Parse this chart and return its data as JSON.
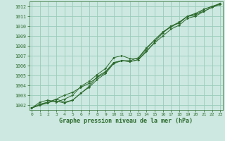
{
  "bg_color": "#cce8e0",
  "plot_bg_color": "#cce8e0",
  "grid_color": "#99ccbb",
  "line_color": "#2d6a2d",
  "marker_color": "#2d6a2d",
  "xlabel": "Graphe pression niveau de la mer (hPa)",
  "xlabel_color": "#2d6a2d",
  "tick_color": "#2d6a2d",
  "ylim": [
    1001.5,
    1012.5
  ],
  "xlim": [
    -0.3,
    23.3
  ],
  "yticks": [
    1002,
    1003,
    1004,
    1005,
    1006,
    1007,
    1008,
    1009,
    1010,
    1011,
    1012
  ],
  "xticks": [
    0,
    1,
    2,
    3,
    4,
    5,
    6,
    7,
    8,
    9,
    10,
    11,
    12,
    13,
    14,
    15,
    16,
    17,
    18,
    19,
    20,
    21,
    22,
    23
  ],
  "series": [
    [
      1001.7,
      1002.0,
      1002.2,
      1002.6,
      1002.3,
      1002.5,
      1003.2,
      1003.8,
      1004.6,
      1005.2,
      1006.2,
      1006.5,
      1006.4,
      1006.6,
      1007.4,
      1008.4,
      1009.3,
      1010.0,
      1010.3,
      1011.0,
      1011.1,
      1011.7,
      1012.0,
      1012.2
    ],
    [
      1001.7,
      1002.0,
      1002.3,
      1002.6,
      1003.0,
      1003.3,
      1003.8,
      1004.2,
      1004.8,
      1005.3,
      1006.3,
      1006.5,
      1006.5,
      1006.8,
      1007.8,
      1008.6,
      1009.4,
      1010.0,
      1010.4,
      1011.0,
      1011.3,
      1011.7,
      1012.0,
      1012.3
    ],
    [
      1001.7,
      1002.3,
      1002.5,
      1002.3,
      1002.6,
      1003.0,
      1003.9,
      1004.4,
      1005.1,
      1005.7,
      1006.8,
      1007.0,
      1006.7,
      1006.7,
      1007.7,
      1008.6,
      1009.4,
      1009.9,
      1010.4,
      1011.0,
      1011.2,
      1011.5,
      1011.9,
      1012.3
    ],
    [
      1001.7,
      1002.1,
      1002.3,
      1002.4,
      1002.2,
      1002.5,
      1003.2,
      1003.9,
      1004.9,
      1005.4,
      1006.3,
      1006.5,
      1006.4,
      1006.6,
      1007.5,
      1008.3,
      1009.0,
      1009.7,
      1010.1,
      1010.8,
      1011.0,
      1011.5,
      1011.9,
      1012.2
    ]
  ]
}
